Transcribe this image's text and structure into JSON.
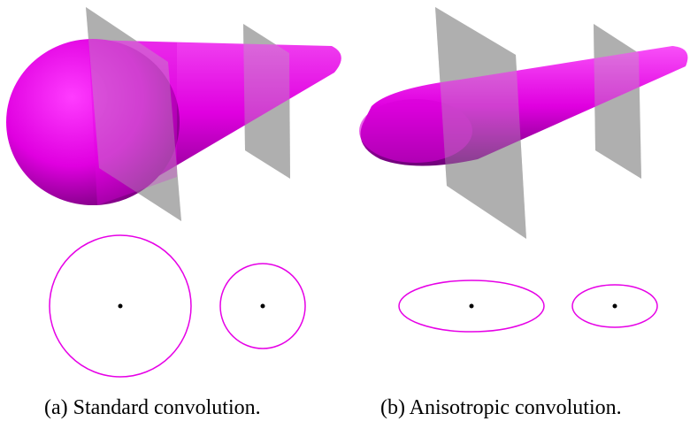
{
  "captions": {
    "a": "(a) Standard convolution.",
    "b": "(b) Anisotropic convolution."
  },
  "colors": {
    "surface": "#e600e6",
    "surface_shadow": "#5a0070",
    "plane": "#9e9e9e",
    "outline": "#e600e6",
    "center_point": "#000000"
  }
}
